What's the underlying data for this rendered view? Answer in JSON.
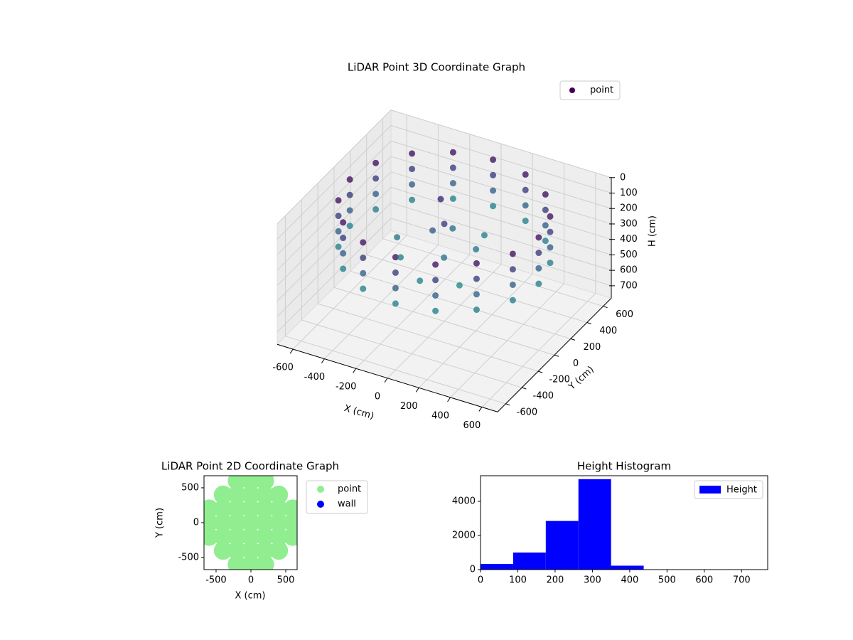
{
  "chart_data": [
    {
      "type": "scatter3d",
      "title": "LiDAR Point 3D Coordinate Graph",
      "xlabel": "X (cm)",
      "ylabel": "Y (cm)",
      "zlabel": "H (cm)",
      "xlim": [
        -700,
        700
      ],
      "ylim": [
        -700,
        700
      ],
      "zlim": [
        0,
        780
      ],
      "z_inverted": true,
      "xticks": [
        -600,
        -400,
        -200,
        0,
        200,
        400,
        600
      ],
      "yticks": [
        -600,
        -400,
        -200,
        0,
        200,
        400,
        600
      ],
      "zticks": [
        0,
        100,
        200,
        300,
        400,
        500,
        600,
        700
      ],
      "colormap": "viridis",
      "grid": true,
      "legend": "upper right",
      "series": [
        {
          "name": "point",
          "color": "#440154",
          "x": [
            600,
            554,
            424,
            230,
            0,
            -230,
            -424,
            -554,
            -600,
            -554,
            -424,
            -230,
            0,
            230,
            424,
            554,
            600,
            554,
            424,
            230,
            0,
            -230,
            -424,
            -554,
            -600,
            -554,
            -424,
            -230,
            0,
            230,
            424,
            554,
            600,
            554,
            424,
            230,
            0,
            -230,
            -424,
            -554,
            -600,
            -554,
            -424,
            -230,
            0,
            230,
            424,
            554,
            600,
            554,
            424,
            230,
            0,
            -230,
            -424,
            -554,
            -600,
            -554,
            -424,
            -230,
            0,
            230,
            424,
            554,
            0,
            -100,
            50,
            150,
            -200,
            200,
            -50,
            100,
            -300,
            0,
            -100
          ],
          "y": [
            0,
            230,
            424,
            554,
            600,
            554,
            424,
            230,
            0,
            -230,
            -424,
            -554,
            -600,
            -554,
            -424,
            -230,
            0,
            230,
            424,
            554,
            600,
            554,
            424,
            230,
            0,
            -230,
            -424,
            -554,
            -600,
            -554,
            -424,
            -230,
            0,
            230,
            424,
            554,
            600,
            554,
            424,
            230,
            0,
            -230,
            -424,
            -554,
            -600,
            -554,
            -424,
            -230,
            0,
            230,
            424,
            554,
            600,
            554,
            424,
            230,
            0,
            -230,
            -424,
            -554,
            -600,
            -554,
            -424,
            -230,
            0,
            50,
            -100,
            100,
            -150,
            -200,
            200,
            300,
            0,
            -300,
            150
          ],
          "z": [
            50,
            50,
            50,
            50,
            50,
            50,
            50,
            50,
            50,
            50,
            50,
            50,
            50,
            50,
            50,
            50,
            150,
            150,
            150,
            150,
            150,
            150,
            150,
            150,
            150,
            150,
            150,
            150,
            150,
            150,
            150,
            150,
            250,
            250,
            250,
            250,
            250,
            250,
            250,
            250,
            250,
            250,
            250,
            250,
            250,
            250,
            250,
            250,
            350,
            350,
            350,
            350,
            350,
            350,
            350,
            350,
            350,
            350,
            350,
            350,
            350,
            350,
            350,
            350,
            150,
            250,
            300,
            320,
            350,
            380,
            300,
            350,
            330,
            360,
            100
          ]
        }
      ]
    },
    {
      "type": "scatter",
      "title": "LiDAR Point 2D Coordinate Graph",
      "xlabel": "X (cm)",
      "ylabel": "Y (cm)",
      "xlim": [
        -673,
        663
      ],
      "ylim": [
        -673,
        673
      ],
      "xticks": [
        -500,
        0,
        500
      ],
      "yticks": [
        -500,
        0,
        500
      ],
      "legend": "outside upper right",
      "series": [
        {
          "name": "point",
          "color": "#90ee90",
          "x": [
            -200,
            0,
            200,
            -400,
            -200,
            0,
            200,
            400,
            -600,
            -400,
            -200,
            0,
            200,
            400,
            600,
            -600,
            -400,
            -200,
            0,
            200,
            400,
            600,
            -600,
            -400,
            -200,
            0,
            200,
            400,
            600,
            -400,
            -200,
            0,
            200,
            400,
            -200,
            0,
            200
          ],
          "y": [
            -600,
            -600,
            -600,
            -400,
            -400,
            -400,
            -400,
            -400,
            -200,
            -200,
            -200,
            -200,
            -200,
            -200,
            -200,
            0,
            0,
            0,
            0,
            0,
            0,
            0,
            200,
            200,
            200,
            200,
            200,
            200,
            200,
            400,
            400,
            400,
            400,
            400,
            600,
            600,
            600
          ]
        },
        {
          "name": "wall",
          "color": "#0000ff",
          "x": [],
          "y": []
        }
      ]
    },
    {
      "type": "histogram",
      "title": "Height Histogram",
      "bins": [
        0,
        87.5,
        175,
        262.5,
        350,
        437.5,
        525,
        612.5,
        700,
        787.5
      ],
      "counts": [
        330,
        1000,
        2850,
        5300,
        230,
        10,
        5,
        5,
        3
      ],
      "series_name": "Height",
      "color": "#0000ff",
      "xlim": [
        0,
        770
      ],
      "ylim": [
        0,
        5500
      ],
      "xticks": [
        0,
        100,
        200,
        300,
        400,
        500,
        600,
        700
      ],
      "yticks": [
        0,
        2000,
        4000
      ],
      "legend": "upper right"
    }
  ]
}
